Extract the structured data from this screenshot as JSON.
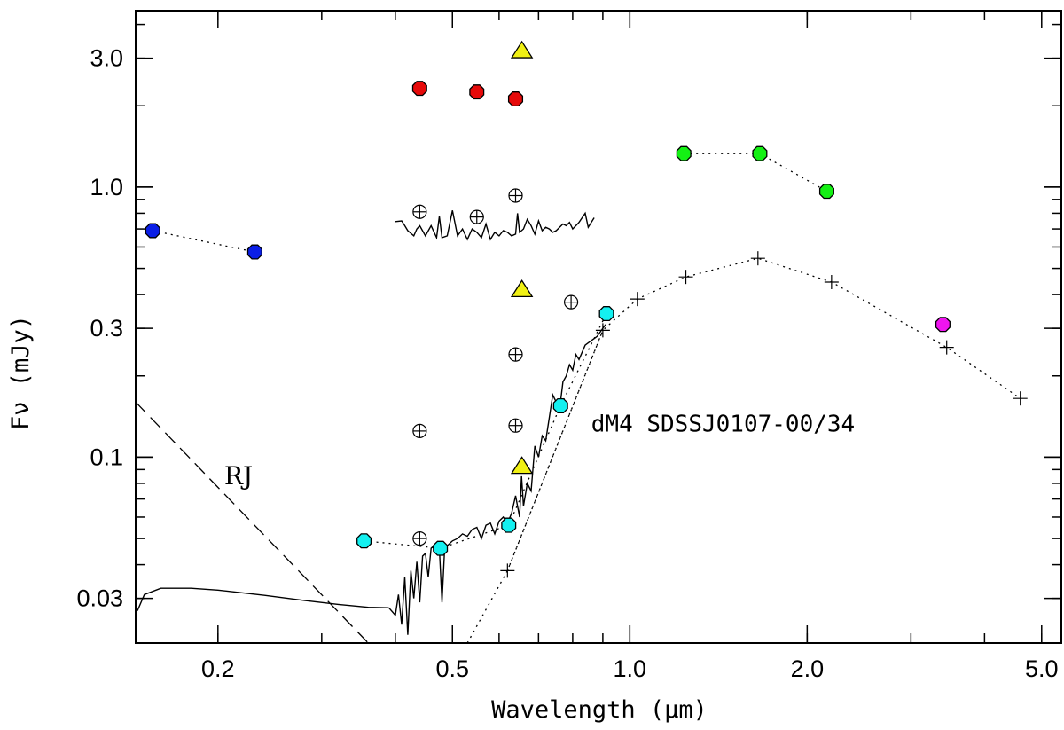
{
  "chart_data": {
    "type": "scatter",
    "title": "",
    "xlabel": "Wavelength (μm)",
    "ylabel": "Fν (mJy)",
    "xscale": "log",
    "yscale": "log",
    "xlim": [
      0.145,
      5.4
    ],
    "ylim": [
      0.0205,
      4.5
    ],
    "xticks": [
      {
        "value": 0.2,
        "label": "0.2"
      },
      {
        "value": 0.5,
        "label": "0.5"
      },
      {
        "value": 1.0,
        "label": "1.0"
      },
      {
        "value": 2.0,
        "label": "2.0"
      },
      {
        "value": 5.0,
        "label": "5.0"
      }
    ],
    "yticks": [
      {
        "value": 0.03,
        "label": "0.03"
      },
      {
        "value": 0.1,
        "label": "0.1"
      },
      {
        "value": 0.3,
        "label": "0.3"
      },
      {
        "value": 1.0,
        "label": "1.0"
      },
      {
        "value": 3.0,
        "label": "3.0"
      }
    ],
    "annotations": [
      {
        "name": "object-label",
        "text": "dM4  SDSSJ0107-00/34",
        "x": 0.86,
        "y": 0.133
      },
      {
        "name": "rj-label",
        "text": "RJ",
        "x": 0.205,
        "y": 0.085
      }
    ],
    "series": [
      {
        "name": "uv-blue",
        "marker": "octagon",
        "color": "#0a1ee6",
        "connected": true,
        "points": [
          [
            0.155,
            0.69
          ],
          [
            0.231,
            0.575
          ]
        ]
      },
      {
        "name": "optical-red",
        "marker": "octagon",
        "color": "#e60a0a",
        "connected": false,
        "points": [
          [
            0.44,
            2.32
          ],
          [
            0.55,
            2.25
          ],
          [
            0.64,
            2.12
          ]
        ]
      },
      {
        "name": "nir-green",
        "marker": "octagon",
        "color": "#14f014",
        "connected": true,
        "points": [
          [
            1.235,
            1.33
          ],
          [
            1.662,
            1.33
          ],
          [
            2.159,
            0.965
          ]
        ]
      },
      {
        "name": "sdss-cyan",
        "marker": "octagon",
        "color": "#14f0f0",
        "connected": true,
        "points": [
          [
            0.354,
            0.049
          ],
          [
            0.477,
            0.046
          ],
          [
            0.623,
            0.056
          ],
          [
            0.763,
            0.155
          ],
          [
            0.913,
            0.34
          ]
        ]
      },
      {
        "name": "irac-magenta",
        "marker": "octagon",
        "color": "#f014f0",
        "connected": false,
        "points": [
          [
            3.4,
            0.31
          ]
        ]
      },
      {
        "name": "yellow-triangles",
        "marker": "triangle",
        "color": "#f0f014",
        "connected": false,
        "points": [
          [
            0.656,
            3.18
          ],
          [
            0.656,
            0.415
          ],
          [
            0.656,
            0.092
          ]
        ]
      },
      {
        "name": "circled-plus",
        "marker": "circle-plus",
        "color": "#000000",
        "connected": false,
        "points": [
          [
            0.44,
            0.81
          ],
          [
            0.55,
            0.775
          ],
          [
            0.64,
            0.93
          ],
          [
            0.44,
            0.125
          ],
          [
            0.44,
            0.05
          ],
          [
            0.64,
            0.24
          ],
          [
            0.64,
            0.131
          ],
          [
            0.795,
            0.375
          ]
        ]
      },
      {
        "name": "model-crosses",
        "marker": "plus",
        "color": "#000000",
        "connected": true,
        "points": [
          [
            0.62,
            0.038
          ],
          [
            0.9,
            0.295
          ],
          [
            1.03,
            0.385
          ],
          [
            1.245,
            0.465
          ],
          [
            1.65,
            0.545
          ],
          [
            2.2,
            0.445
          ],
          [
            3.45,
            0.255
          ],
          [
            4.6,
            0.165
          ]
        ]
      },
      {
        "name": "model-dotted-rise",
        "marker": "none",
        "color": "#000000",
        "connected": true,
        "style": "dotted",
        "points": [
          [
            0.53,
            0.0205
          ],
          [
            0.62,
            0.038
          ],
          [
            0.9,
            0.295
          ]
        ]
      },
      {
        "name": "rayleigh-jeans",
        "marker": "none",
        "color": "#000000",
        "connected": true,
        "style": "dashed",
        "points": [
          [
            0.145,
            0.16
          ],
          [
            0.36,
            0.0205
          ]
        ]
      },
      {
        "name": "wd-model-curve",
        "marker": "none",
        "color": "#000000",
        "connected": true,
        "style": "solid",
        "points": [
          [
            0.146,
            0.027
          ],
          [
            0.15,
            0.031
          ],
          [
            0.16,
            0.0327
          ],
          [
            0.18,
            0.0327
          ],
          [
            0.2,
            0.0322
          ],
          [
            0.24,
            0.0308
          ],
          [
            0.28,
            0.0295
          ],
          [
            0.32,
            0.0285
          ],
          [
            0.36,
            0.0278
          ],
          [
            0.39,
            0.0277
          ]
        ]
      },
      {
        "name": "dm-spectrum",
        "marker": "none",
        "color": "#000000",
        "connected": true,
        "style": "solid",
        "points": [
          [
            0.39,
            0.0277
          ],
          [
            0.4,
            0.026
          ],
          [
            0.405,
            0.031
          ],
          [
            0.41,
            0.024
          ],
          [
            0.415,
            0.036
          ],
          [
            0.42,
            0.022
          ],
          [
            0.425,
            0.038
          ],
          [
            0.43,
            0.03
          ],
          [
            0.435,
            0.041
          ],
          [
            0.44,
            0.029
          ],
          [
            0.445,
            0.043
          ],
          [
            0.45,
            0.044
          ],
          [
            0.455,
            0.036
          ],
          [
            0.46,
            0.046
          ],
          [
            0.465,
            0.047
          ],
          [
            0.47,
            0.045
          ],
          [
            0.475,
            0.046
          ],
          [
            0.48,
            0.029
          ],
          [
            0.485,
            0.046
          ],
          [
            0.49,
            0.047
          ],
          [
            0.5,
            0.049
          ],
          [
            0.51,
            0.05
          ],
          [
            0.52,
            0.052
          ],
          [
            0.53,
            0.051
          ],
          [
            0.54,
            0.054
          ],
          [
            0.55,
            0.055
          ],
          [
            0.56,
            0.05
          ],
          [
            0.57,
            0.056
          ],
          [
            0.58,
            0.057
          ],
          [
            0.59,
            0.052
          ],
          [
            0.6,
            0.058
          ],
          [
            0.61,
            0.06
          ],
          [
            0.62,
            0.057
          ],
          [
            0.63,
            0.062
          ],
          [
            0.64,
            0.072
          ],
          [
            0.65,
            0.06
          ],
          [
            0.655,
            0.085
          ],
          [
            0.66,
            0.066
          ],
          [
            0.67,
            0.08
          ],
          [
            0.68,
            0.075
          ],
          [
            0.69,
            0.11
          ],
          [
            0.7,
            0.1
          ],
          [
            0.71,
            0.12
          ],
          [
            0.72,
            0.115
          ],
          [
            0.73,
            0.14
          ],
          [
            0.74,
            0.17
          ],
          [
            0.75,
            0.16
          ],
          [
            0.76,
            0.15
          ],
          [
            0.77,
            0.19
          ],
          [
            0.78,
            0.2
          ],
          [
            0.79,
            0.22
          ],
          [
            0.8,
            0.21
          ],
          [
            0.81,
            0.24
          ],
          [
            0.82,
            0.23
          ],
          [
            0.84,
            0.26
          ],
          [
            0.86,
            0.27
          ],
          [
            0.88,
            0.28
          ],
          [
            0.9,
            0.3
          ],
          [
            0.91,
            0.31
          ]
        ]
      },
      {
        "name": "optical-spectrum",
        "marker": "none",
        "color": "#000000",
        "connected": true,
        "style": "solid",
        "points": [
          [
            0.4,
            0.745
          ],
          [
            0.41,
            0.75
          ],
          [
            0.415,
            0.72
          ],
          [
            0.42,
            0.69
          ],
          [
            0.43,
            0.66
          ],
          [
            0.435,
            0.7
          ],
          [
            0.44,
            0.72
          ],
          [
            0.45,
            0.66
          ],
          [
            0.46,
            0.72
          ],
          [
            0.47,
            0.65
          ],
          [
            0.475,
            0.78
          ],
          [
            0.48,
            0.65
          ],
          [
            0.49,
            0.66
          ],
          [
            0.5,
            0.82
          ],
          [
            0.51,
            0.66
          ],
          [
            0.52,
            0.7
          ],
          [
            0.53,
            0.64
          ],
          [
            0.54,
            0.7
          ],
          [
            0.55,
            0.68
          ],
          [
            0.56,
            0.65
          ],
          [
            0.57,
            0.73
          ],
          [
            0.58,
            0.64
          ],
          [
            0.59,
            0.68
          ],
          [
            0.6,
            0.66
          ],
          [
            0.61,
            0.69
          ],
          [
            0.62,
            0.68
          ],
          [
            0.63,
            0.66
          ],
          [
            0.64,
            0.67
          ],
          [
            0.645,
            0.8
          ],
          [
            0.65,
            0.68
          ],
          [
            0.66,
            0.7
          ],
          [
            0.67,
            0.76
          ],
          [
            0.68,
            0.72
          ],
          [
            0.69,
            0.67
          ],
          [
            0.7,
            0.75
          ],
          [
            0.71,
            0.69
          ],
          [
            0.72,
            0.71
          ],
          [
            0.73,
            0.7
          ],
          [
            0.74,
            0.68
          ],
          [
            0.75,
            0.69
          ],
          [
            0.76,
            0.71
          ],
          [
            0.77,
            0.73
          ],
          [
            0.78,
            0.72
          ],
          [
            0.79,
            0.74
          ],
          [
            0.8,
            0.7
          ],
          [
            0.81,
            0.72
          ],
          [
            0.82,
            0.74
          ],
          [
            0.83,
            0.77
          ],
          [
            0.84,
            0.8
          ],
          [
            0.85,
            0.71
          ],
          [
            0.86,
            0.74
          ],
          [
            0.87,
            0.77
          ]
        ]
      }
    ]
  }
}
